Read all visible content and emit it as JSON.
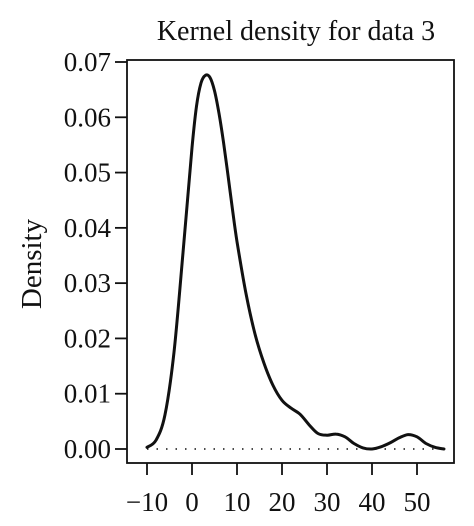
{
  "chart_data": {
    "type": "line",
    "title": "Kernel density for data 3",
    "xlabel": "",
    "ylabel": "Density",
    "xlim": [
      -12,
      58
    ],
    "ylim": [
      0,
      0.07
    ],
    "x_ticks": [
      -10,
      0,
      10,
      20,
      30,
      40,
      50
    ],
    "x_tick_labels": [
      "−10",
      "0",
      "10",
      "20",
      "30",
      "40",
      "50"
    ],
    "y_ticks": [
      0,
      0.01,
      0.02,
      0.03,
      0.04,
      0.05,
      0.06,
      0.07
    ],
    "y_tick_labels": [
      "0.00",
      "0.01",
      "0.02",
      "0.03",
      "0.04",
      "0.05",
      "0.06",
      "0.07"
    ],
    "grid": false,
    "baseline": {
      "y": 0,
      "style": "dotted"
    },
    "line_color": "#111111",
    "series": [
      {
        "x": [
          -10,
          -8,
          -6,
          -4,
          -2,
          0,
          1,
          2,
          3,
          4,
          5,
          6,
          7,
          8,
          9,
          10,
          12,
          14,
          16,
          18,
          20,
          22,
          24,
          26,
          28,
          30,
          32,
          34,
          36,
          38,
          40,
          42,
          44,
          46,
          48,
          50,
          52,
          54,
          56
        ],
        "y": [
          0.0003,
          0.0016,
          0.0062,
          0.0175,
          0.0355,
          0.0545,
          0.062,
          0.0662,
          0.0676,
          0.0672,
          0.0648,
          0.0607,
          0.0555,
          0.0495,
          0.0433,
          0.0375,
          0.0281,
          0.0208,
          0.0155,
          0.0115,
          0.0088,
          0.0074,
          0.0063,
          0.0044,
          0.0028,
          0.0025,
          0.0027,
          0.0022,
          0.001,
          0.0002,
          0.0,
          0.0004,
          0.0011,
          0.002,
          0.0026,
          0.0022,
          0.001,
          0.0003,
          0.0
        ]
      }
    ]
  }
}
